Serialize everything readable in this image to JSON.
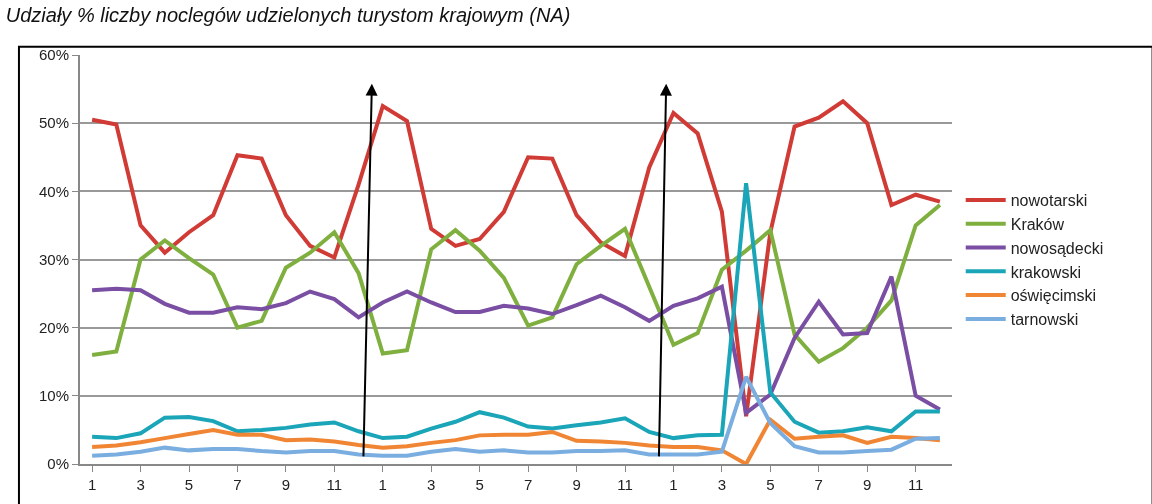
{
  "chart_data": {
    "type": "line",
    "title": "Udziały % liczby noclegów udzielonych turystom krajowym (NA)",
    "categories": [
      "1",
      null,
      "3",
      null,
      "5",
      null,
      "7",
      null,
      "9",
      null,
      "11",
      null,
      "1",
      null,
      "3",
      null,
      "5",
      null,
      "7",
      null,
      "9",
      null,
      "11",
      null,
      "1",
      null,
      "3",
      null,
      "5",
      null,
      "7",
      null,
      "9",
      null,
      "11",
      null
    ],
    "ylim": [
      0,
      60
    ],
    "yticks": [
      {
        "value": 0,
        "label": "0%"
      },
      {
        "value": 10,
        "label": "10%"
      },
      {
        "value": 20,
        "label": "20%"
      },
      {
        "value": 30,
        "label": "30%"
      },
      {
        "value": 40,
        "label": "40%"
      },
      {
        "value": 50,
        "label": "50%"
      },
      {
        "value": 60,
        "label": "60%"
      }
    ],
    "grid": "y",
    "legend": "right",
    "marker": "none",
    "line_style": "solid",
    "series": [
      {
        "name": "nowotarski",
        "color": "#d03b36",
        "values": [
          50.5,
          49.8,
          35,
          31,
          34,
          36.5,
          45.3,
          44.8,
          36.5,
          32,
          30.3,
          41,
          52.5,
          50.3,
          34.5,
          32,
          33,
          37,
          45,
          44.8,
          36.5,
          32.5,
          30.5,
          43.5,
          51.5,
          48.5,
          37,
          7,
          34,
          49.5,
          50.8,
          53.2,
          50,
          38,
          39.5,
          38.5
        ]
      },
      {
        "name": "Kraków",
        "color": "#7fb03f",
        "values": [
          16,
          16.5,
          30,
          32.8,
          30.2,
          27.8,
          20,
          21,
          28.8,
          31,
          34,
          28,
          16.2,
          16.7,
          31.5,
          34.3,
          31.3,
          27.3,
          20.3,
          21.5,
          29.3,
          32,
          34.5,
          26,
          17.5,
          19.2,
          28.5,
          31.3,
          34.3,
          19,
          15,
          17,
          20,
          24,
          35,
          38
        ]
      },
      {
        "name": "nowosądecki",
        "color": "#7a4ea3",
        "values": [
          25.5,
          25.7,
          25.5,
          23.5,
          22.2,
          22.2,
          23,
          22.7,
          23.6,
          25.3,
          24.2,
          21.5,
          23.7,
          25.3,
          23.7,
          22.3,
          22.3,
          23.2,
          22.8,
          22,
          23.3,
          24.7,
          23,
          21,
          23.2,
          24.3,
          26,
          7.5,
          10.2,
          18.5,
          23.8,
          19,
          19.2,
          27.5,
          10,
          8
        ]
      },
      {
        "name": "krakowski",
        "color": "#1aa5b8",
        "values": [
          4,
          3.8,
          4.5,
          6.8,
          6.9,
          6.3,
          4.8,
          5,
          5.3,
          5.8,
          6.1,
          4.8,
          3.8,
          4,
          5.2,
          6.2,
          7.6,
          6.8,
          5.5,
          5.2,
          5.7,
          6.1,
          6.7,
          4.7,
          3.8,
          4.2,
          4.3,
          41.2,
          10.5,
          6.2,
          4.6,
          4.8,
          5.4,
          4.8,
          7.7,
          7.7
        ]
      },
      {
        "name": "oświęcimski",
        "color": "#f08534",
        "values": [
          2.5,
          2.7,
          3.2,
          3.8,
          4.4,
          5,
          4.3,
          4.3,
          3.5,
          3.6,
          3.3,
          2.8,
          2.4,
          2.6,
          3.1,
          3.5,
          4.2,
          4.3,
          4.3,
          4.7,
          3.4,
          3.3,
          3.1,
          2.7,
          2.5,
          2.5,
          2,
          0,
          6.5,
          3.7,
          4,
          4.2,
          3.1,
          4,
          3.8,
          3.5
        ]
      },
      {
        "name": "tarnowski",
        "color": "#7aaee0",
        "values": [
          1.2,
          1.4,
          1.8,
          2.4,
          2,
          2.2,
          2.2,
          1.9,
          1.7,
          1.9,
          1.9,
          1.4,
          1.2,
          1.2,
          1.8,
          2.2,
          1.8,
          2,
          1.7,
          1.7,
          1.9,
          1.9,
          2,
          1.4,
          1.4,
          1.4,
          1.8,
          12.8,
          6,
          2.6,
          1.7,
          1.7,
          1.9,
          2.1,
          3.7,
          3.8
        ]
      }
    ]
  }
}
